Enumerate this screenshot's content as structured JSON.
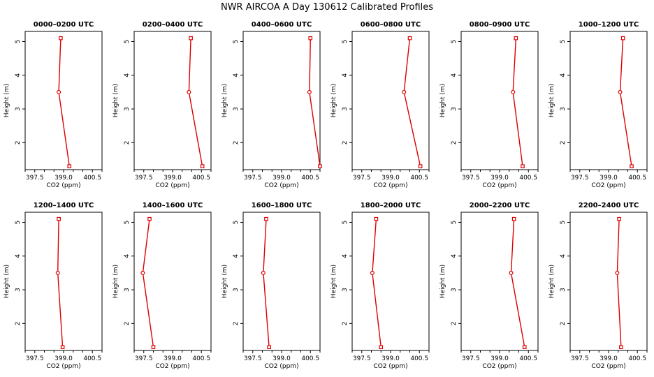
{
  "chart_data": {
    "type": "line",
    "title": "NWR AIRCOA A  Day 130612  Calibrated Profiles",
    "xlabel": "CO2 (ppm)",
    "ylabel": "Height (m)",
    "xlim": [
      397.0,
      401.0
    ],
    "ylim": [
      1.2,
      5.3
    ],
    "xticks": [
      "397.5",
      "399.0",
      "400.5"
    ],
    "yticks": [
      "2",
      "3",
      "4",
      "5"
    ],
    "line_color": "#dd0000",
    "panels": [
      {
        "title": "0000–0200 UTC",
        "x": [
          398.85,
          398.75,
          399.3
        ],
        "y": [
          5.1,
          3.5,
          1.3
        ]
      },
      {
        "title": "0200–0400 UTC",
        "x": [
          399.95,
          399.85,
          400.55
        ],
        "y": [
          5.1,
          3.5,
          1.3
        ]
      },
      {
        "title": "0400–0600 UTC",
        "x": [
          400.5,
          400.45,
          401.0
        ],
        "y": [
          5.1,
          3.5,
          1.3
        ]
      },
      {
        "title": "0600–0800 UTC",
        "x": [
          400.0,
          399.7,
          400.55
        ],
        "y": [
          5.1,
          3.5,
          1.3
        ]
      },
      {
        "title": "0800–0900 UTC",
        "x": [
          399.85,
          399.7,
          400.2
        ],
        "y": [
          5.1,
          3.5,
          1.3
        ]
      },
      {
        "title": "1000–1200 UTC",
        "x": [
          399.75,
          399.6,
          400.2
        ],
        "y": [
          5.1,
          3.5,
          1.3
        ]
      },
      {
        "title": "1200–1400 UTC",
        "x": [
          398.75,
          398.7,
          398.95
        ],
        "y": [
          5.1,
          3.5,
          1.3
        ]
      },
      {
        "title": "1400–1600 UTC",
        "x": [
          397.8,
          397.45,
          398.0
        ],
        "y": [
          5.1,
          3.5,
          1.3
        ]
      },
      {
        "title": "1600–1800 UTC",
        "x": [
          398.2,
          398.05,
          398.35
        ],
        "y": [
          5.1,
          3.5,
          1.3
        ]
      },
      {
        "title": "1800–2000 UTC",
        "x": [
          398.25,
          398.05,
          398.5
        ],
        "y": [
          5.1,
          3.5,
          1.3
        ]
      },
      {
        "title": "2000–2200 UTC",
        "x": [
          399.75,
          399.6,
          400.3
        ],
        "y": [
          5.1,
          3.5,
          1.3
        ]
      },
      {
        "title": "2200–2400 UTC",
        "x": [
          399.55,
          399.45,
          399.65
        ],
        "y": [
          5.1,
          3.5,
          1.3
        ]
      }
    ]
  }
}
